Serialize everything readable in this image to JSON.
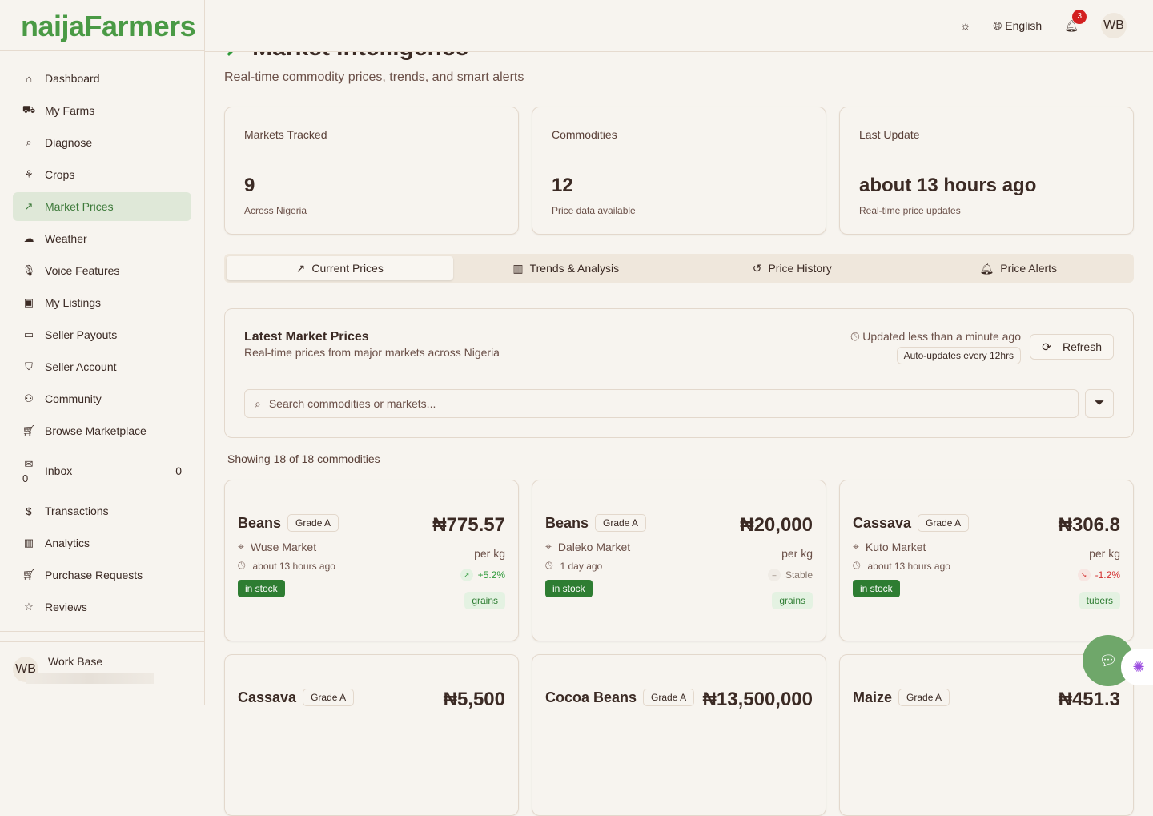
{
  "logo": "naijaFarmers",
  "topbar": {
    "language": "English",
    "notifications": "3",
    "user_initials": "WB"
  },
  "sidebar": {
    "items": [
      {
        "label": "Dashboard",
        "icon": "home-icon"
      },
      {
        "label": "My Farms",
        "icon": "tractor-icon"
      },
      {
        "label": "Diagnose",
        "icon": "search-icon"
      },
      {
        "label": "Crops",
        "icon": "sprout-icon"
      },
      {
        "label": "Market Prices",
        "icon": "trending-up-icon",
        "active": true
      },
      {
        "label": "Weather",
        "icon": "cloud-icon"
      },
      {
        "label": "Voice Features",
        "icon": "mic-icon"
      },
      {
        "label": "My Listings",
        "icon": "bag-icon"
      },
      {
        "label": "Seller Payouts",
        "icon": "banknote-icon"
      },
      {
        "label": "Seller Account",
        "icon": "shield-icon"
      },
      {
        "label": "Community",
        "icon": "users-icon"
      },
      {
        "label": "Browse Marketplace",
        "icon": "cart-icon"
      }
    ],
    "inbox": {
      "label": "Inbox",
      "sub": "0",
      "count": "0"
    },
    "items2": [
      {
        "label": "Transactions",
        "icon": "receipt-icon"
      },
      {
        "label": "Analytics",
        "icon": "bar-chart-icon"
      },
      {
        "label": "Purchase Requests",
        "icon": "cart-icon"
      },
      {
        "label": "Reviews",
        "icon": "star-icon"
      }
    ],
    "user": {
      "initials": "WB",
      "name": "Work Base"
    }
  },
  "page": {
    "title": "Market Intelligence",
    "subtitle": "Real-time commodity prices, trends, and smart alerts"
  },
  "stats": [
    {
      "label": "Markets Tracked",
      "value": "9",
      "desc": "Across Nigeria"
    },
    {
      "label": "Commodities",
      "value": "12",
      "desc": "Price data available"
    },
    {
      "label": "Last Update",
      "value": "about 13 hours ago",
      "desc": "Real-time price updates"
    }
  ],
  "tabs": [
    {
      "label": "Current Prices",
      "icon": "↗"
    },
    {
      "label": "Trends & Analysis",
      "icon": "▥"
    },
    {
      "label": "Price History",
      "icon": "↺"
    },
    {
      "label": "Price Alerts",
      "icon": "🔔︎"
    }
  ],
  "panel": {
    "title": "Latest Market Prices",
    "desc": "Real-time prices from major markets across Nigeria",
    "updated": "Updated less than a minute ago",
    "auto": "Auto-updates every 12hrs",
    "refresh": "Refresh",
    "search_placeholder": "Search commodities or markets..."
  },
  "showing": "Showing 18 of 18 commodities",
  "colors": {
    "up": "#2e9a3a",
    "down": "#d32f2f",
    "stable": "#8a7a70"
  },
  "commodities": [
    {
      "name": "Beans",
      "grade": "Grade A",
      "price": "₦775.57",
      "unit": "per kg",
      "market": "Wuse Market",
      "time": "about 13 hours ago",
      "change": "+5.2%",
      "trend": "up",
      "stock": "in stock",
      "category": "grains"
    },
    {
      "name": "Beans",
      "grade": "Grade A",
      "price": "₦20,000",
      "unit": "per kg",
      "market": "Daleko Market",
      "time": "1 day ago",
      "change": "Stable",
      "trend": "stable",
      "stock": "in stock",
      "category": "grains"
    },
    {
      "name": "Cassava",
      "grade": "Grade A",
      "price": "₦306.8",
      "unit": "per kg",
      "market": "Kuto Market",
      "time": "about 13 hours ago",
      "change": "-1.2%",
      "trend": "down",
      "stock": "in stock",
      "category": "tubers"
    },
    {
      "name": "Cassava",
      "grade": "Grade A",
      "price": "₦5,500"
    },
    {
      "name": "Cocoa Beans",
      "grade": "Grade A",
      "price": "₦13,500,000"
    },
    {
      "name": "Maize",
      "grade": "Grade A",
      "price": "₦451.3"
    }
  ]
}
